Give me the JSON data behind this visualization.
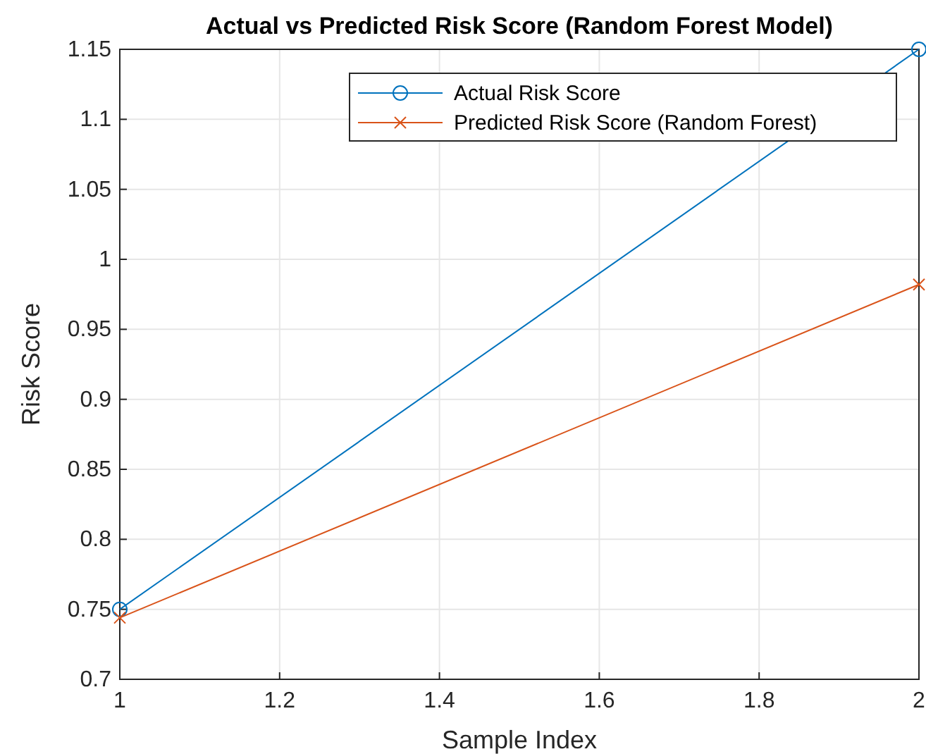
{
  "chart_data": {
    "type": "line",
    "title": "Actual vs Predicted Risk Score (Random Forest Model)",
    "xlabel": "Sample Index",
    "ylabel": "Risk Score",
    "x": [
      1,
      2
    ],
    "series": [
      {
        "name": "Actual Risk Score",
        "color": "#0072bd",
        "values": [
          0.75,
          1.15
        ],
        "marker": "circle"
      },
      {
        "name": "Predicted Risk Score (Random Forest)",
        "color": "#d95319",
        "values": [
          0.744,
          0.982
        ],
        "marker": "cross"
      }
    ],
    "xlim": [
      1,
      2
    ],
    "xticks": [
      1,
      1.2,
      1.4,
      1.6,
      1.8,
      2
    ],
    "ylim": [
      0.7,
      1.15
    ],
    "yticks": [
      0.7,
      0.75,
      0.8,
      0.85,
      0.9,
      0.95,
      1,
      1.05,
      1.1,
      1.15
    ],
    "grid": true,
    "legend": "top right",
    "line_style": "solid"
  }
}
